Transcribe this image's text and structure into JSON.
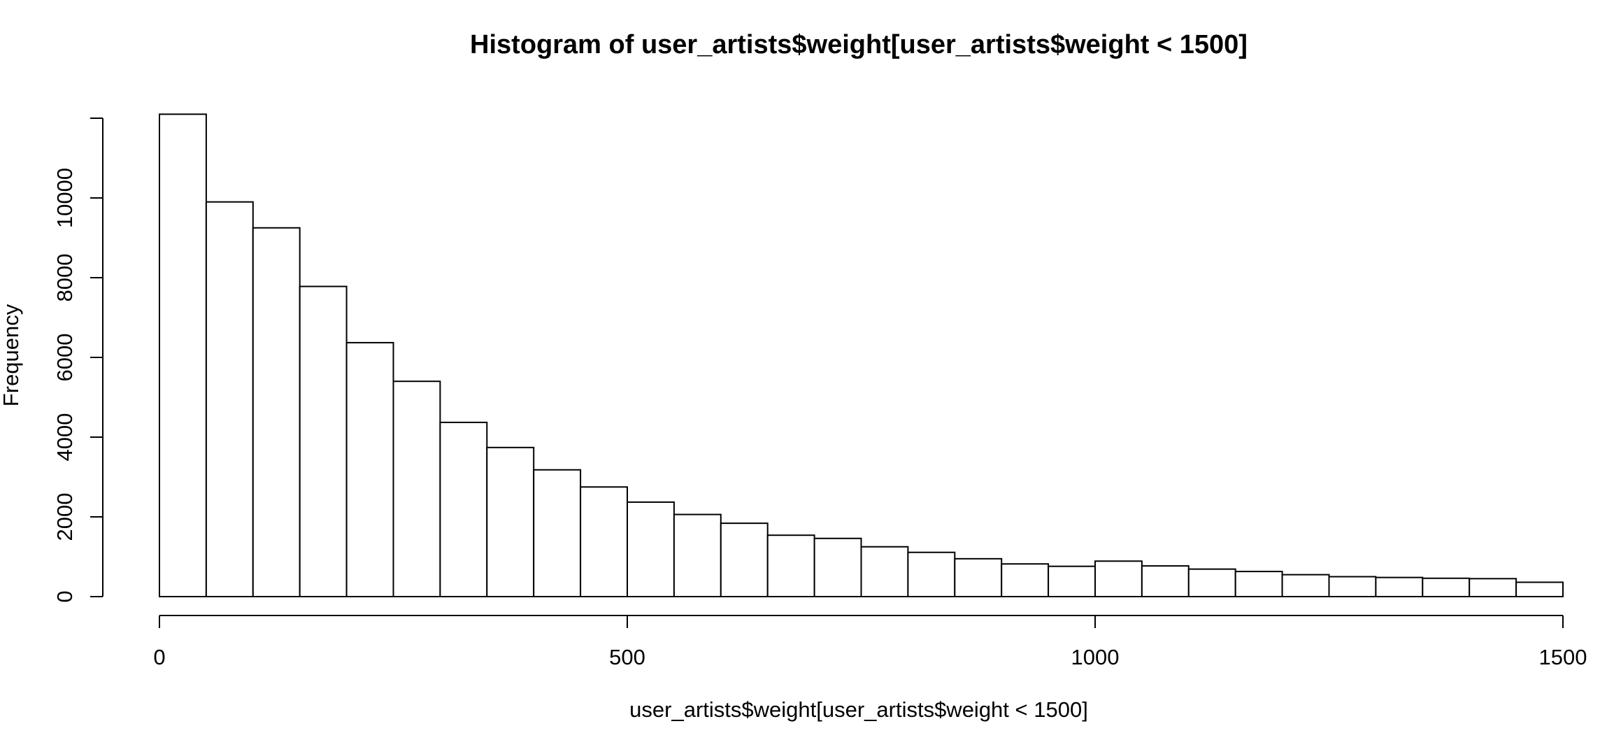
{
  "chart_data": {
    "type": "bar",
    "title": "Histogram of user_artists$weight[user_artists$weight < 1500]",
    "xlabel": "user_artists$weight[user_artists$weight < 1500]",
    "ylabel": "Frequency",
    "xlim": [
      0,
      1500
    ],
    "ylim": [
      0,
      12000
    ],
    "bin_width": 50,
    "x_ticks": [
      0,
      500,
      1000,
      1500
    ],
    "y_ticks": [
      0,
      2000,
      4000,
      6000,
      8000,
      10000
    ],
    "grid": false,
    "bins": [
      {
        "start": 0,
        "end": 50,
        "value": 12100
      },
      {
        "start": 50,
        "end": 100,
        "value": 9900
      },
      {
        "start": 100,
        "end": 150,
        "value": 9250
      },
      {
        "start": 150,
        "end": 200,
        "value": 7780
      },
      {
        "start": 200,
        "end": 250,
        "value": 6370
      },
      {
        "start": 250,
        "end": 300,
        "value": 5400
      },
      {
        "start": 300,
        "end": 350,
        "value": 4370
      },
      {
        "start": 350,
        "end": 400,
        "value": 3740
      },
      {
        "start": 400,
        "end": 450,
        "value": 3180
      },
      {
        "start": 450,
        "end": 500,
        "value": 2750
      },
      {
        "start": 500,
        "end": 550,
        "value": 2370
      },
      {
        "start": 550,
        "end": 600,
        "value": 2060
      },
      {
        "start": 600,
        "end": 650,
        "value": 1840
      },
      {
        "start": 650,
        "end": 700,
        "value": 1540
      },
      {
        "start": 700,
        "end": 750,
        "value": 1460
      },
      {
        "start": 750,
        "end": 800,
        "value": 1250
      },
      {
        "start": 800,
        "end": 850,
        "value": 1110
      },
      {
        "start": 850,
        "end": 900,
        "value": 950
      },
      {
        "start": 900,
        "end": 950,
        "value": 820
      },
      {
        "start": 950,
        "end": 1000,
        "value": 760
      },
      {
        "start": 1000,
        "end": 1050,
        "value": 890
      },
      {
        "start": 1050,
        "end": 1100,
        "value": 770
      },
      {
        "start": 1100,
        "end": 1150,
        "value": 690
      },
      {
        "start": 1150,
        "end": 1200,
        "value": 630
      },
      {
        "start": 1200,
        "end": 1250,
        "value": 550
      },
      {
        "start": 1250,
        "end": 1300,
        "value": 500
      },
      {
        "start": 1300,
        "end": 1350,
        "value": 480
      },
      {
        "start": 1350,
        "end": 1400,
        "value": 460
      },
      {
        "start": 1400,
        "end": 1450,
        "value": 450
      },
      {
        "start": 1450,
        "end": 1500,
        "value": 360
      }
    ]
  }
}
